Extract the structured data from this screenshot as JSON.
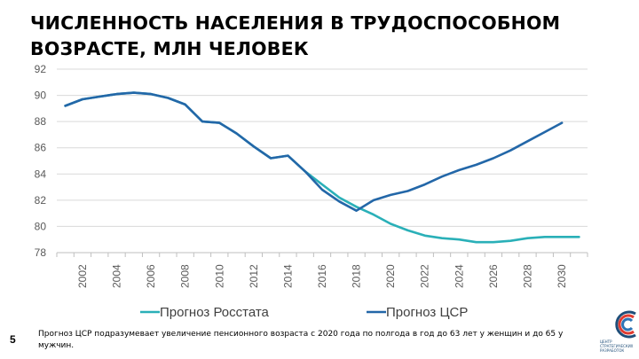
{
  "title": {
    "line1": "ЧИСЛЕННОСТЬ НАСЕЛЕНИЯ В ТРУДОСПОСОБНОМ",
    "line2": "ВОЗРАСТЕ, МЛН ЧЕЛОВЕК"
  },
  "page_number": "5",
  "footnote": "Прогноз ЦСР подразумевает увеличение пенсионного возраста с 2020 года по полгода в год до 63 лет у женщин и до 65 у мужчин.",
  "logo": {
    "caption": "ЦЕНТР СТРАТЕГИЧЕСКИХ РАЗРАБОТОК",
    "colors": [
      "#1f4e79",
      "#e03c31",
      "#2e75b6"
    ]
  },
  "chart_data": {
    "type": "line",
    "x": [
      2001,
      2002,
      2003,
      2004,
      2005,
      2006,
      2007,
      2008,
      2009,
      2010,
      2011,
      2012,
      2013,
      2014,
      2015,
      2016,
      2017,
      2018,
      2019,
      2020,
      2021,
      2022,
      2023,
      2024,
      2025,
      2026,
      2027,
      2028,
      2029,
      2030,
      2031
    ],
    "x_tick_labels": [
      "2002",
      "2004",
      "2006",
      "2008",
      "2010",
      "2012",
      "2014",
      "2016",
      "2018",
      "2020",
      "2022",
      "2024",
      "2026",
      "2028",
      "2030"
    ],
    "x_tick_values": [
      2002,
      2004,
      2006,
      2008,
      2010,
      2012,
      2014,
      2016,
      2018,
      2020,
      2022,
      2024,
      2026,
      2028,
      2030
    ],
    "ylim": [
      78,
      92
    ],
    "y_ticks": [
      78,
      80,
      82,
      84,
      86,
      88,
      90,
      92
    ],
    "grid": true,
    "legend_position": "bottom",
    "series": [
      {
        "name": "Прогноз Росстата",
        "color": "#2ab0b8",
        "values": [
          89.2,
          89.7,
          89.9,
          90.1,
          90.2,
          90.1,
          89.8,
          89.3,
          88.0,
          87.9,
          87.1,
          86.1,
          85.2,
          85.4,
          84.2,
          83.2,
          82.2,
          81.5,
          80.9,
          80.2,
          79.7,
          79.3,
          79.1,
          79.0,
          78.8,
          78.8,
          78.9,
          79.1,
          79.2,
          79.2,
          79.2
        ]
      },
      {
        "name": "Прогноз ЦСР",
        "color": "#2367a8",
        "values": [
          89.2,
          89.7,
          89.9,
          90.1,
          90.2,
          90.1,
          89.8,
          89.3,
          88.0,
          87.9,
          87.1,
          86.1,
          85.2,
          85.4,
          84.2,
          82.8,
          81.9,
          81.2,
          82.0,
          82.4,
          82.7,
          83.2,
          83.8,
          84.3,
          84.7,
          85.2,
          85.8,
          86.5,
          87.2,
          87.9,
          null
        ]
      }
    ]
  }
}
